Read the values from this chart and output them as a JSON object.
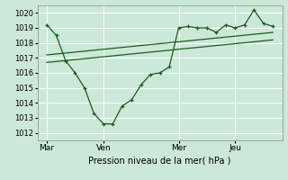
{
  "title": "",
  "xlabel": "Pression niveau de la mer( hPa )",
  "ylabel": "",
  "bg_color": "#cce8d8",
  "grid_color": "#ffffff",
  "line_color": "#1a5e1a",
  "ylim": [
    1011.5,
    1020.5
  ],
  "yticks": [
    1012,
    1013,
    1014,
    1015,
    1016,
    1017,
    1018,
    1019,
    1020
  ],
  "xtick_labels": [
    "Mar",
    "Ven",
    "Mer",
    "Jeu"
  ],
  "xtick_positions": [
    0,
    3,
    7,
    10
  ],
  "xlim": [
    -0.5,
    12.5
  ],
  "series1_x": [
    0,
    0.5,
    1,
    1.5,
    2,
    2.5,
    3,
    3.5,
    4,
    4.5,
    5,
    5.5,
    6,
    6.5,
    7,
    7.5,
    8,
    8.5,
    9,
    9.5,
    10,
    10.5,
    11,
    11.5,
    12
  ],
  "series1_y": [
    1019.2,
    1018.5,
    1016.8,
    1016.0,
    1015.0,
    1013.3,
    1012.6,
    1012.6,
    1013.8,
    1014.2,
    1015.2,
    1015.9,
    1016.0,
    1016.4,
    1019.0,
    1019.1,
    1019.0,
    1019.0,
    1018.7,
    1019.2,
    1019.0,
    1019.2,
    1020.2,
    1019.3,
    1019.1
  ],
  "series2_x": [
    0,
    12
  ],
  "series2_y": [
    1017.2,
    1018.7
  ],
  "series3_x": [
    0,
    12
  ],
  "series3_y": [
    1016.7,
    1018.2
  ]
}
